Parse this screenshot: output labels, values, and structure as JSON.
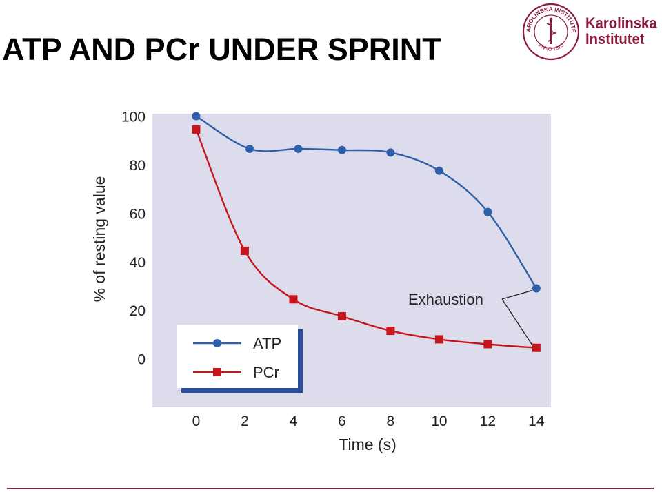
{
  "slide": {
    "title": "ATP AND PCr UNDER SPRINT"
  },
  "logo": {
    "seal_text": "KAROLINSKA INSTITUTET",
    "seal_year": "ANNO 1810",
    "name_line1": "Karolinska",
    "name_line2": "Institutet",
    "color": "#8e1b3b"
  },
  "chart_data": {
    "type": "line",
    "xlabel": "Time (s)",
    "ylabel": "% of resting value",
    "xlim": [
      -1.8,
      14.6
    ],
    "ylim": [
      -20,
      101
    ],
    "xticks": [
      0,
      2,
      4,
      6,
      8,
      10,
      12,
      14
    ],
    "yticks": [
      0,
      20,
      40,
      60,
      80,
      100
    ],
    "grid": false,
    "plot_background": "#dcdcec",
    "legend_placement": "bottom-left",
    "annotation": {
      "text": "Exhaustion",
      "points_to": [
        14,
        14
      ]
    },
    "series": [
      {
        "name": "ATP",
        "marker": "circle",
        "color": "#2e5fa8",
        "x": [
          0,
          2.2,
          4.2,
          6,
          8,
          10,
          12,
          14
        ],
        "y": [
          100,
          86.5,
          86.5,
          86,
          85,
          77.5,
          60.5,
          29
        ]
      },
      {
        "name": "PCr",
        "marker": "square",
        "color": "#c4161c",
        "x": [
          0,
          2,
          4,
          6,
          8,
          10,
          12,
          14
        ],
        "y": [
          94.5,
          44.5,
          24.5,
          17.5,
          11.5,
          8,
          6,
          4.5
        ]
      }
    ]
  }
}
